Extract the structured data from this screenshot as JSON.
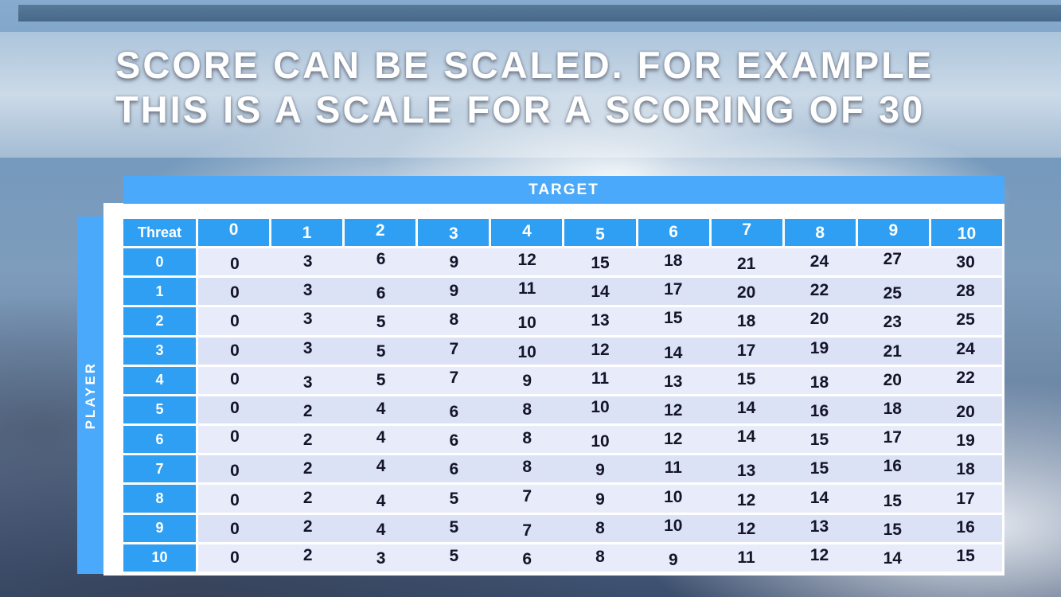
{
  "title": {
    "line1": "SCORE CAN BE SCALED. FOR EXAMPLE",
    "line2": "THIS IS A SCALE FOR A SCORING OF 30"
  },
  "table": {
    "target_label": "TARGET",
    "player_label": "PLAYER",
    "corner_label": "Threat",
    "col_headers": [
      "0",
      "1",
      "2",
      "3",
      "4",
      "5",
      "6",
      "7",
      "8",
      "9",
      "10"
    ],
    "row_headers": [
      "0",
      "1",
      "2",
      "3",
      "4",
      "5",
      "6",
      "7",
      "8",
      "9",
      "10"
    ],
    "rows": [
      [
        0,
        3,
        6,
        9,
        12,
        15,
        18,
        21,
        24,
        27,
        30
      ],
      [
        0,
        3,
        6,
        9,
        11,
        14,
        17,
        20,
        22,
        25,
        28
      ],
      [
        0,
        3,
        5,
        8,
        10,
        13,
        15,
        18,
        20,
        23,
        25
      ],
      [
        0,
        3,
        5,
        7,
        10,
        12,
        14,
        17,
        19,
        21,
        24
      ],
      [
        0,
        3,
        5,
        7,
        9,
        11,
        13,
        15,
        18,
        20,
        22
      ],
      [
        0,
        2,
        4,
        6,
        8,
        10,
        12,
        14,
        16,
        18,
        20
      ],
      [
        0,
        2,
        4,
        6,
        8,
        10,
        12,
        14,
        15,
        17,
        19
      ],
      [
        0,
        2,
        4,
        6,
        8,
        9,
        11,
        13,
        15,
        16,
        18
      ],
      [
        0,
        2,
        4,
        5,
        7,
        9,
        10,
        12,
        14,
        15,
        17
      ],
      [
        0,
        2,
        4,
        5,
        7,
        8,
        10,
        12,
        13,
        15,
        16
      ],
      [
        0,
        2,
        3,
        5,
        6,
        8,
        9,
        11,
        12,
        14,
        15
      ]
    ]
  },
  "colors": {
    "header_blue": "#2f9ff4",
    "bar_blue": "#4aa9fa",
    "row_light": "#e8ecfa",
    "row_dark": "#dce2f6",
    "cell_text": "#14142a"
  }
}
